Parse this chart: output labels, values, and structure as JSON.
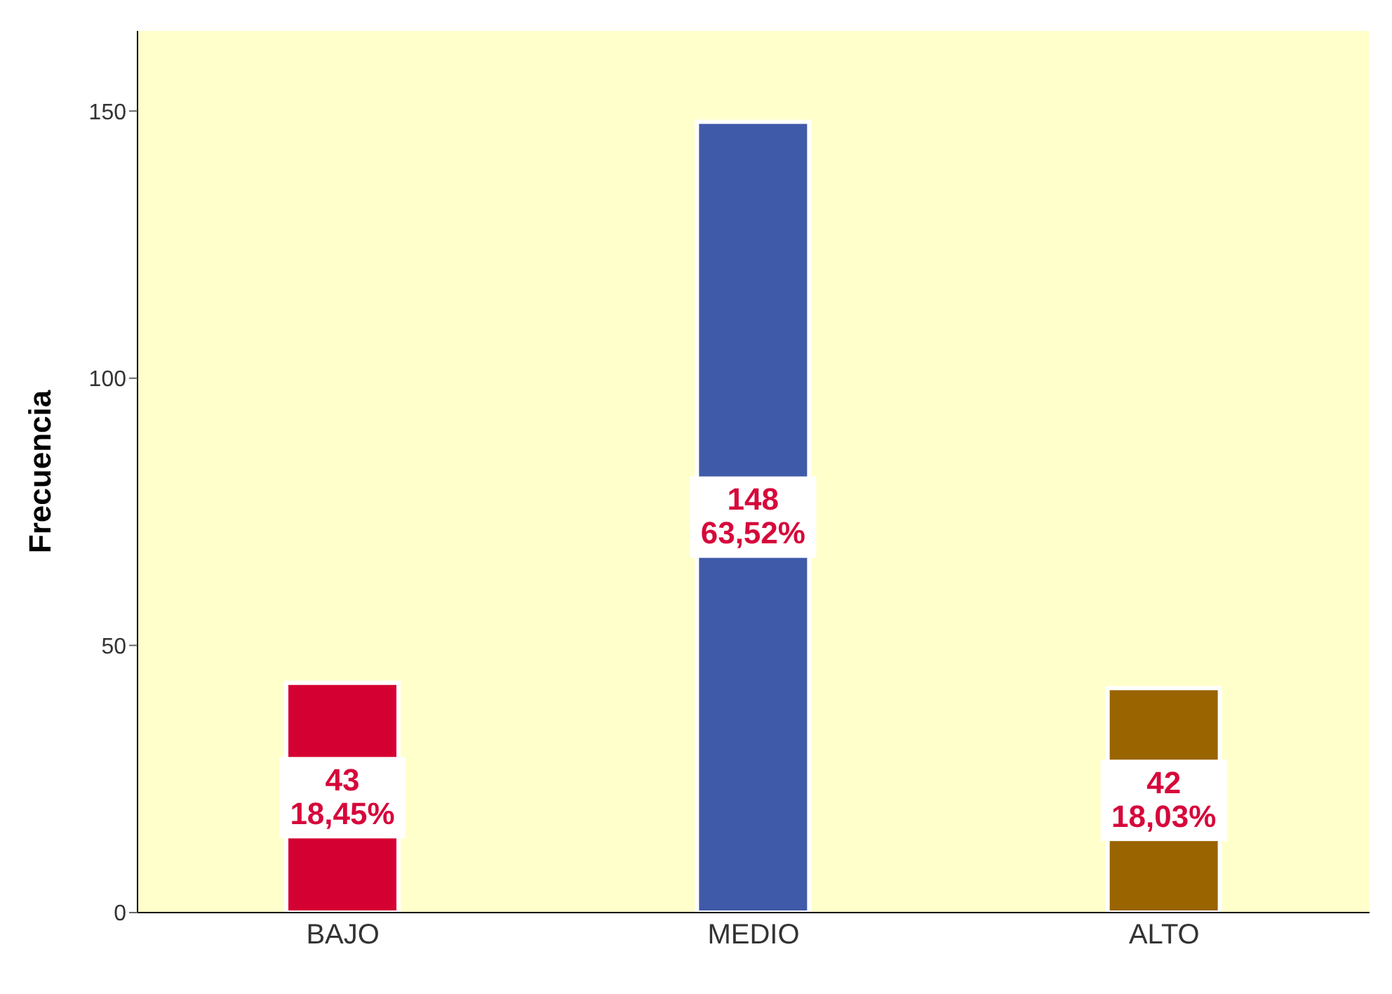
{
  "chart_data": {
    "type": "bar",
    "ylabel": "Frecuencia",
    "categories": [
      "BAJO",
      "MEDIO",
      "ALTO"
    ],
    "values": [
      43,
      148,
      42
    ],
    "colors": [
      "#d50032",
      "#3f5aa8",
      "#9a6400"
    ],
    "value_labels": [
      "43\n18,45%",
      "148\n63,52%",
      "42\n18,03%"
    ],
    "ylim": [
      0,
      165
    ],
    "yticks": [
      0,
      50,
      100,
      150
    ],
    "grid": false
  }
}
